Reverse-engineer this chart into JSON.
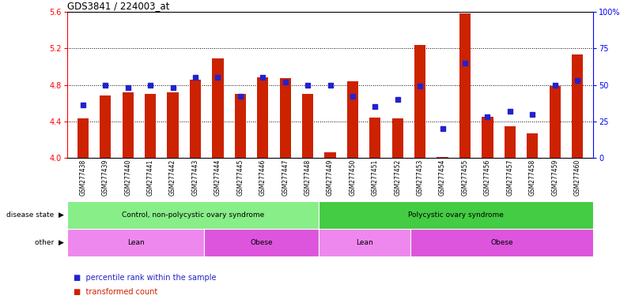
{
  "title": "GDS3841 / 224003_at",
  "samples": [
    "GSM277438",
    "GSM277439",
    "GSM277440",
    "GSM277441",
    "GSM277442",
    "GSM277443",
    "GSM277444",
    "GSM277445",
    "GSM277446",
    "GSM277447",
    "GSM277448",
    "GSM277449",
    "GSM277450",
    "GSM277451",
    "GSM277452",
    "GSM277453",
    "GSM277454",
    "GSM277455",
    "GSM277456",
    "GSM277457",
    "GSM277458",
    "GSM277459",
    "GSM277460"
  ],
  "bar_values": [
    4.43,
    4.68,
    4.72,
    4.7,
    4.72,
    4.86,
    5.09,
    4.7,
    4.88,
    4.87,
    4.7,
    4.06,
    4.84,
    4.44,
    4.43,
    5.24,
    4.01,
    5.58,
    4.45,
    4.35,
    4.27,
    4.79,
    5.13
  ],
  "dot_values": [
    36,
    50,
    48,
    50,
    48,
    55,
    55,
    42,
    55,
    52,
    50,
    50,
    42,
    35,
    40,
    49,
    20,
    65,
    28,
    32,
    30,
    50,
    53
  ],
  "ylim_left": [
    4.0,
    5.6
  ],
  "ylim_right": [
    0,
    100
  ],
  "yticks_left": [
    4.0,
    4.4,
    4.8,
    5.2,
    5.6
  ],
  "yticks_right": [
    0,
    25,
    50,
    75,
    100
  ],
  "ytick_labels_right": [
    "0",
    "25",
    "50",
    "75",
    "100%"
  ],
  "hgrid_lines": [
    4.4,
    4.8,
    5.2
  ],
  "bar_color": "#CC2200",
  "dot_color": "#2222CC",
  "disease_groups": [
    {
      "label": "Control, non-polycystic ovary syndrome",
      "start": 0,
      "end": 11,
      "color": "#88EE88"
    },
    {
      "label": "Polycystic ovary syndrome",
      "start": 11,
      "end": 23,
      "color": "#44CC44"
    }
  ],
  "other_groups": [
    {
      "label": "Lean",
      "start": 0,
      "end": 6,
      "color": "#EE88EE"
    },
    {
      "label": "Obese",
      "start": 6,
      "end": 11,
      "color": "#DD55DD"
    },
    {
      "label": "Lean",
      "start": 11,
      "end": 15,
      "color": "#EE88EE"
    },
    {
      "label": "Obese",
      "start": 15,
      "end": 23,
      "color": "#DD55DD"
    }
  ],
  "legend_items": [
    {
      "label": "transformed count",
      "color": "#CC2200"
    },
    {
      "label": "percentile rank within the sample",
      "color": "#2222CC"
    }
  ],
  "xlabels_bg": "#D0D0D0",
  "plot_bg": "#FFFFFF",
  "fig_bg": "#FFFFFF",
  "left_label_color": "#333333"
}
